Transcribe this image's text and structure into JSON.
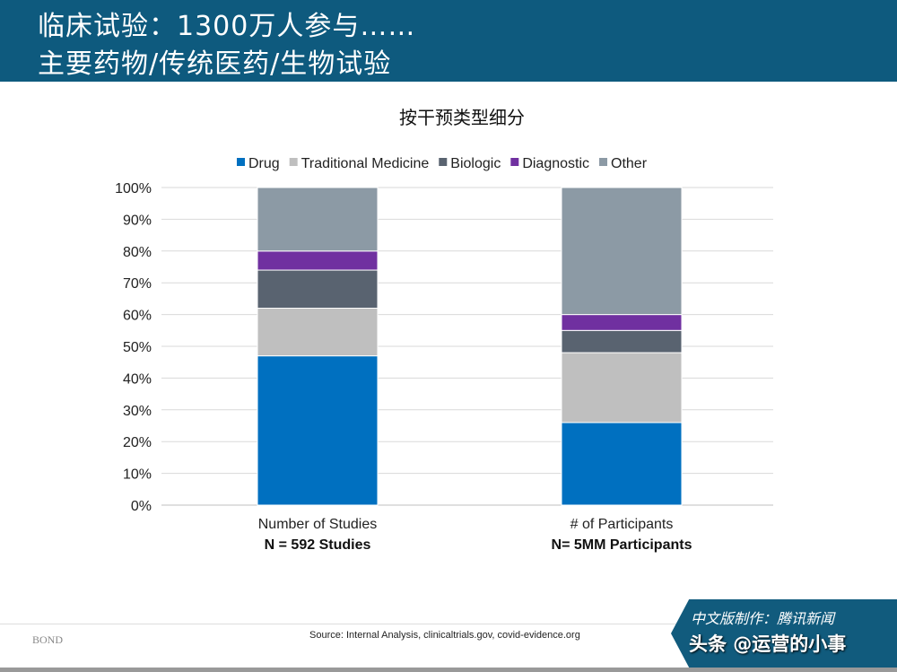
{
  "header": {
    "title_line1": "临床试验：1300万人参与……",
    "title_line2": "主要药物/传统医药/生物试验"
  },
  "chart_data": {
    "type": "bar",
    "stacked": true,
    "title": "按干预类型细分",
    "categories": [
      "Number of Studies",
      "# of Participants"
    ],
    "category_sublabels": [
      "N = 592 Studies",
      "N= 5MM Participants"
    ],
    "ylim": [
      0,
      100
    ],
    "yticks": [
      "0%",
      "10%",
      "20%",
      "30%",
      "40%",
      "50%",
      "60%",
      "70%",
      "80%",
      "90%",
      "100%"
    ],
    "grid": true,
    "legend": "top",
    "series": [
      {
        "name": "Drug",
        "color": "#0070c0",
        "values": [
          47,
          26
        ]
      },
      {
        "name": "Traditional Medicine",
        "color": "#bfbfbf",
        "values": [
          15,
          22
        ]
      },
      {
        "name": "Biologic",
        "color": "#596370",
        "values": [
          12,
          7
        ]
      },
      {
        "name": "Diagnostic",
        "color": "#7030a0",
        "values": [
          6,
          5
        ]
      },
      {
        "name": "Other",
        "color": "#8c9aa5",
        "values": [
          20,
          40
        ]
      }
    ]
  },
  "footer": {
    "source": "Source: Internal Analysis, clinicaltrials.gov, covid-evidence.org",
    "logo": "BOND"
  },
  "badge": {
    "line1": "中文版制作：腾讯新闻",
    "line2": "头条 @运营的小事"
  }
}
